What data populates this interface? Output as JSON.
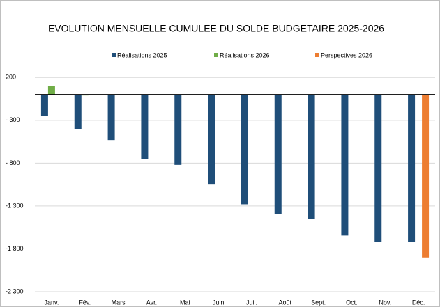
{
  "chart_data": {
    "type": "bar",
    "title": "EVOLUTION MENSUELLE CUMULEE DU SOLDE BUDGETAIRE 2025-2026",
    "categories": [
      "Janv.",
      "Fév.",
      "Mars",
      "Avr.",
      "Mai",
      "Juin",
      "Juil.",
      "Août",
      "Sept.",
      "Oct.",
      "Nov.",
      "Déc."
    ],
    "series": [
      {
        "name": "Réalisations 2025",
        "color": "#1f4e79",
        "values": [
          -250,
          -400,
          -530,
          -750,
          -820,
          -1050,
          -1280,
          -1390,
          -1450,
          -1645,
          -1720,
          -1720
        ]
      },
      {
        "name": "Réalisations 2026",
        "color": "#70ad47",
        "values": [
          100,
          -10,
          null,
          null,
          null,
          null,
          null,
          null,
          null,
          null,
          null,
          null
        ]
      },
      {
        "name": "Perspectives 2026",
        "color": "#ed7d31",
        "values": [
          null,
          null,
          null,
          null,
          null,
          null,
          null,
          null,
          null,
          null,
          null,
          -1900
        ]
      }
    ],
    "ylim": [
      -2300,
      300
    ],
    "yticks": [
      200,
      {
        "value": -300,
        "label": "- 300"
      },
      {
        "value": -800,
        "label": "- 800"
      },
      {
        "value": -1300,
        "label": "-1 300"
      },
      {
        "value": -1800,
        "label": "-1 800"
      },
      {
        "value": -2300,
        "label": "-2 300"
      }
    ],
    "grid": true,
    "legend": "top"
  }
}
